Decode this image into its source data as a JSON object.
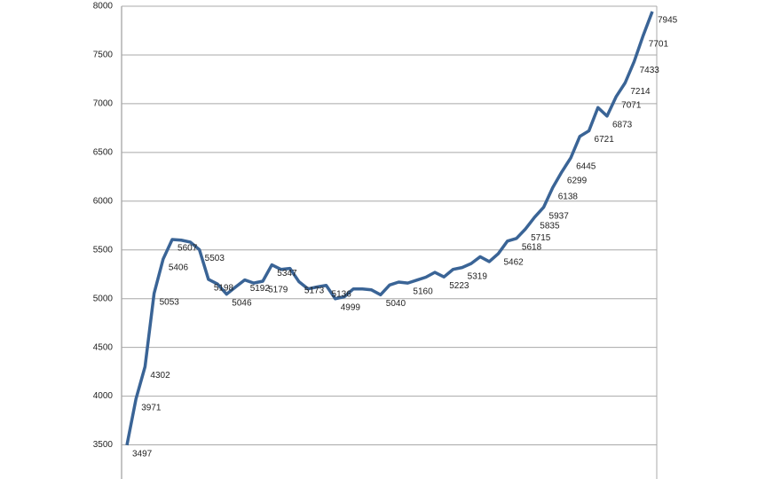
{
  "chart_data": {
    "type": "line",
    "categories": [
      null,
      null,
      null,
      null,
      null,
      null,
      null,
      null,
      null,
      null,
      null,
      null,
      null,
      null,
      null,
      null,
      null,
      null,
      null,
      null,
      null,
      null,
      null,
      null,
      null,
      null,
      null,
      null,
      null,
      null,
      null,
      null,
      null,
      null,
      null,
      null,
      null,
      null,
      null,
      null,
      null,
      null,
      null,
      null,
      null,
      null,
      null,
      null,
      null,
      null,
      null,
      null,
      null,
      null,
      null,
      null,
      null,
      null,
      null
    ],
    "series": [
      {
        "color": "#3a6496",
        "values": [
          3497,
          3971,
          4302,
          5053,
          5406,
          5607,
          5600,
          5580,
          5503,
          5198,
          5150,
          5046,
          5120,
          5192,
          5160,
          5179,
          5347,
          5300,
          5310,
          5173,
          5100,
          5120,
          5136,
          4999,
          5020,
          5100,
          5100,
          5090,
          5040,
          5140,
          5170,
          5160,
          5190,
          5220,
          5270,
          5223,
          5300,
          5319,
          5360,
          5430,
          5380,
          5462,
          5590,
          5618,
          5715,
          5835,
          5937,
          6138,
          6299,
          6445,
          6665,
          6721,
          6960,
          6873,
          7071,
          7214,
          7433,
          7701,
          7945
        ],
        "value_labels": [
          "3497",
          "3971",
          "4302",
          "5053",
          "5406",
          "5607",
          null,
          null,
          "5503",
          "5198",
          null,
          "5046",
          null,
          "5192",
          null,
          "5179",
          "5347",
          null,
          null,
          "5173",
          null,
          null,
          "5136",
          "4999",
          null,
          null,
          null,
          null,
          "5040",
          null,
          null,
          "5160",
          null,
          null,
          null,
          "5223",
          null,
          "5319",
          null,
          null,
          null,
          "5462",
          null,
          "5618",
          "5715",
          "5835",
          "5937",
          "6138",
          "6299",
          "6445",
          null,
          "6721",
          null,
          "6873",
          "7071",
          "7214",
          "7433",
          "7701",
          "7945"
        ]
      }
    ],
    "ylim": [
      3150,
      8000
    ],
    "yticks": [
      3500,
      4000,
      4500,
      5000,
      5500,
      6000,
      6500,
      7000,
      7500,
      8000
    ],
    "grid": true
  }
}
